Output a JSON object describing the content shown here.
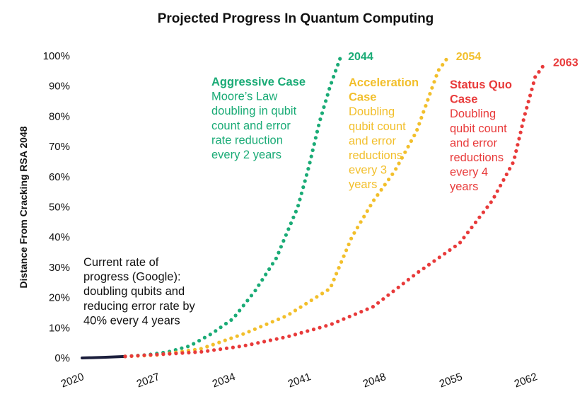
{
  "chart_data": {
    "type": "line",
    "title": "Projected Progress In Quantum Computing",
    "xlabel": "",
    "ylabel": "Distance From Cracking RSA 2048",
    "x_ticks": [
      "2020",
      "2027",
      "2034",
      "2041",
      "2048",
      "2055",
      "2062"
    ],
    "y_ticks": [
      "0%",
      "10%",
      "20%",
      "30%",
      "40%",
      "50%",
      "60%",
      "70%",
      "80%",
      "90%",
      "100%"
    ],
    "xlim": [
      2020,
      2063
    ],
    "ylim": [
      0,
      100
    ],
    "colors": {
      "current": "#1b1e3c",
      "aggressive": "#1aab76",
      "acceleration": "#f2bf2b",
      "status_quo": "#e83a3a"
    },
    "series": [
      {
        "key": "current",
        "style": "solid",
        "x": [
          2020,
          2021,
          2022,
          2023,
          2024
        ],
        "y": [
          0,
          0.1,
          0.2,
          0.35,
          0.5
        ]
      },
      {
        "key": "aggressive",
        "style": "dotted",
        "x": [
          2024,
          2026,
          2028,
          2030,
          2032,
          2034,
          2036,
          2038,
          2040,
          2041,
          2042,
          2043,
          2044
        ],
        "y": [
          0.5,
          1,
          2,
          4,
          8,
          13,
          22,
          33,
          50,
          63,
          78,
          90,
          100
        ]
      },
      {
        "key": "acceleration",
        "style": "dotted",
        "x": [
          2024,
          2027,
          2031,
          2035,
          2039,
          2043,
          2045,
          2047,
          2049,
          2051,
          2052,
          2053,
          2054
        ],
        "y": [
          0.5,
          1,
          3,
          8,
          14,
          23,
          40,
          52,
          62,
          75,
          85,
          95,
          100
        ]
      },
      {
        "key": "status_quo",
        "style": "dotted",
        "x": [
          2024,
          2031,
          2035,
          2039,
          2043,
          2047,
          2051,
          2055,
          2058,
          2060,
          2061,
          2062,
          2063
        ],
        "y": [
          0.5,
          2,
          4,
          7,
          11,
          17,
          28,
          38,
          52,
          65,
          80,
          93,
          98
        ]
      }
    ],
    "end_labels": [
      {
        "key": "aggressive",
        "text": "2044"
      },
      {
        "key": "acceleration",
        "text": "2054"
      },
      {
        "key": "status_quo",
        "text": "2063"
      }
    ]
  },
  "annotations": {
    "current": [
      "Current rate of",
      "progress (Google):",
      "doubling qubits and",
      "reducing error rate by",
      "40% every 4 years"
    ],
    "aggressive": {
      "heading": [
        "Aggressive Case"
      ],
      "body": [
        "Moore’s Law",
        "doubling in qubit",
        "count and error",
        "rate reduction",
        "every 2 years"
      ]
    },
    "acceleration": {
      "heading": [
        "Acceleration",
        "Case"
      ],
      "body": [
        "Doubling",
        "qubit count",
        "and error",
        "reductions",
        "every 3",
        "years"
      ]
    },
    "status_quo": {
      "heading": [
        "Status Quo",
        "Case"
      ],
      "body": [
        "Doubling",
        "qubit count",
        "and error",
        "reductions",
        "every 4",
        "years"
      ]
    }
  }
}
